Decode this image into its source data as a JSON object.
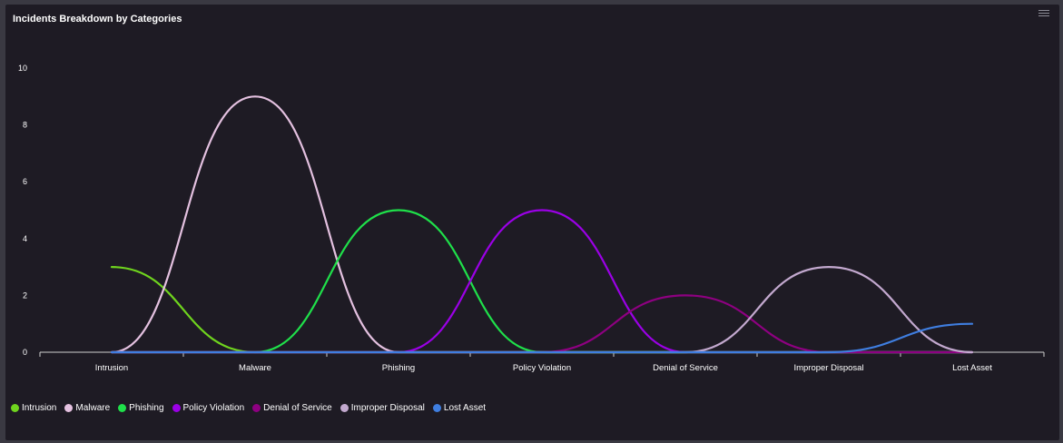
{
  "panel": {
    "title": "Incidents Breakdown by Categories",
    "menu_icon": "hamburger-menu-icon"
  },
  "chart_data": {
    "type": "line",
    "title": "Incidents Breakdown by Categories",
    "xlabel": "",
    "ylabel": "",
    "categories": [
      "Intrusion",
      "Malware",
      "Phishing",
      "Policy Violation",
      "Denial of Service",
      "Improper Disposal",
      "Lost Asset"
    ],
    "ylim": [
      0,
      10
    ],
    "yticks": [
      "0",
      "2",
      "4",
      "6",
      "8",
      "10"
    ],
    "grid": false,
    "legend_position": "bottom-left",
    "smooth": true,
    "series": [
      {
        "name": "Intrusion",
        "color": "#6fd41e",
        "values": [
          3,
          0,
          0,
          0,
          0,
          0,
          0
        ]
      },
      {
        "name": "Malware",
        "color": "#e4c1e0",
        "values": [
          0,
          9,
          0,
          0,
          0,
          0,
          0
        ]
      },
      {
        "name": "Phishing",
        "color": "#1fe04a",
        "values": [
          0,
          0,
          5,
          0,
          0,
          0,
          0
        ]
      },
      {
        "name": "Policy Violation",
        "color": "#9b00e6",
        "values": [
          0,
          0,
          0,
          5,
          0,
          0,
          0
        ]
      },
      {
        "name": "Denial of Service",
        "color": "#8e0081",
        "values": [
          0,
          0,
          0,
          0,
          2,
          0,
          0
        ]
      },
      {
        "name": "Improper Disposal",
        "color": "#c3a9cf",
        "values": [
          0,
          0,
          0,
          0,
          0,
          3,
          0
        ]
      },
      {
        "name": "Lost Asset",
        "color": "#3f7ee0",
        "values": [
          0,
          0,
          0,
          0,
          0,
          0,
          1
        ]
      }
    ]
  }
}
